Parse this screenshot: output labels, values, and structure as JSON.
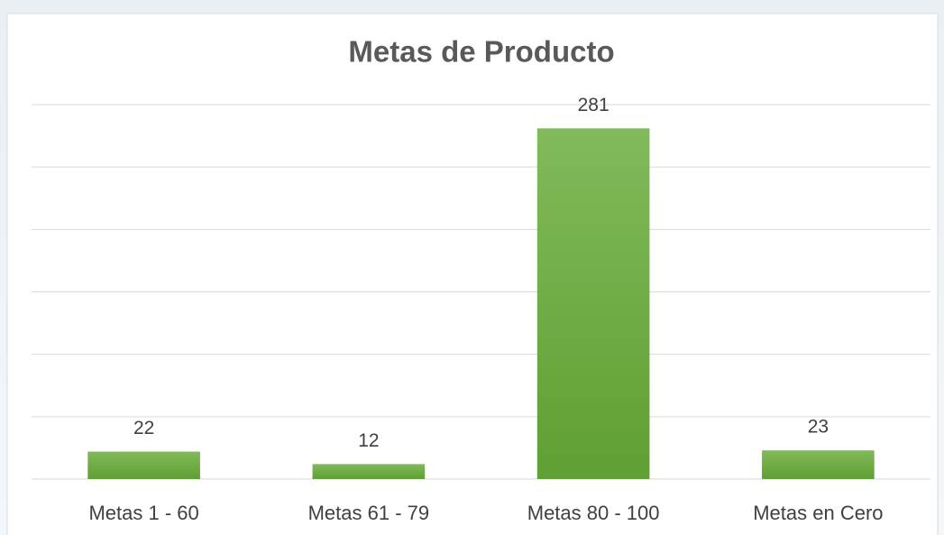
{
  "chart_data": {
    "type": "bar",
    "title": "Metas de Producto",
    "categories": [
      "Metas 1 - 60",
      "Metas 61 - 79",
      "Metas 80 - 100",
      "Metas en Cero"
    ],
    "values": [
      22,
      12,
      281,
      23
    ],
    "color": "#70ad47",
    "ylim": [
      0,
      300
    ],
    "yticks": [
      0,
      50,
      100,
      150,
      200,
      250,
      300
    ],
    "grid": true
  }
}
